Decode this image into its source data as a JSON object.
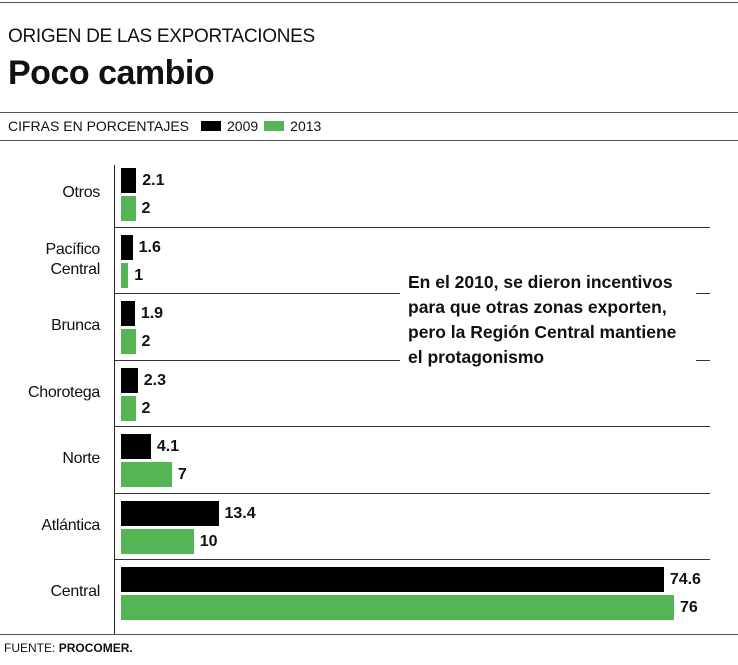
{
  "header": {
    "kicker": "ORIGEN DE LAS EXPORTACIONES",
    "title": "Poco cambio"
  },
  "legend": {
    "units": "CIFRAS EN PORCENTAJES",
    "items": [
      {
        "label": "2009",
        "color": "#000000"
      },
      {
        "label": "2013",
        "color": "#55b555"
      }
    ]
  },
  "annotation": "En el 2010, se dieron incentivos para que otras zonas exporten, pero la Región Central mantiene el protagonismo",
  "source": {
    "label": "FUENTE:",
    "value": "PROCOMER."
  },
  "chart_data": {
    "type": "bar",
    "orientation": "horizontal",
    "title": "Poco cambio",
    "subtitle": "ORIGEN DE LAS EXPORTACIONES",
    "ylabel": "CIFRAS EN PORCENTAJES",
    "categories": [
      "Otros",
      "Pacífico Central",
      "Brunca",
      "Chorotega",
      "Norte",
      "Atlántica",
      "Central"
    ],
    "category_lines": [
      [
        "Otros"
      ],
      [
        "Pacífico",
        "Central"
      ],
      [
        "Brunca"
      ],
      [
        "Chorotega"
      ],
      [
        "Norte"
      ],
      [
        "Atlántica"
      ],
      [
        "Central"
      ]
    ],
    "series": [
      {
        "name": "2009",
        "color": "#000000",
        "values": [
          2.1,
          1.6,
          1.9,
          2.3,
          4.1,
          13.4,
          74.6
        ],
        "labels": [
          "2.1",
          "1.6",
          "1.9",
          "2.3",
          "4.1",
          "13.4",
          "74.6"
        ]
      },
      {
        "name": "2013",
        "color": "#55b555",
        "values": [
          2,
          1,
          2,
          2,
          7,
          10,
          76
        ],
        "labels": [
          "2",
          "1",
          "2",
          "2",
          "7",
          "10",
          "76"
        ]
      }
    ],
    "xlim": [
      0,
      76
    ],
    "grid": false,
    "legend_position": "top-left"
  }
}
